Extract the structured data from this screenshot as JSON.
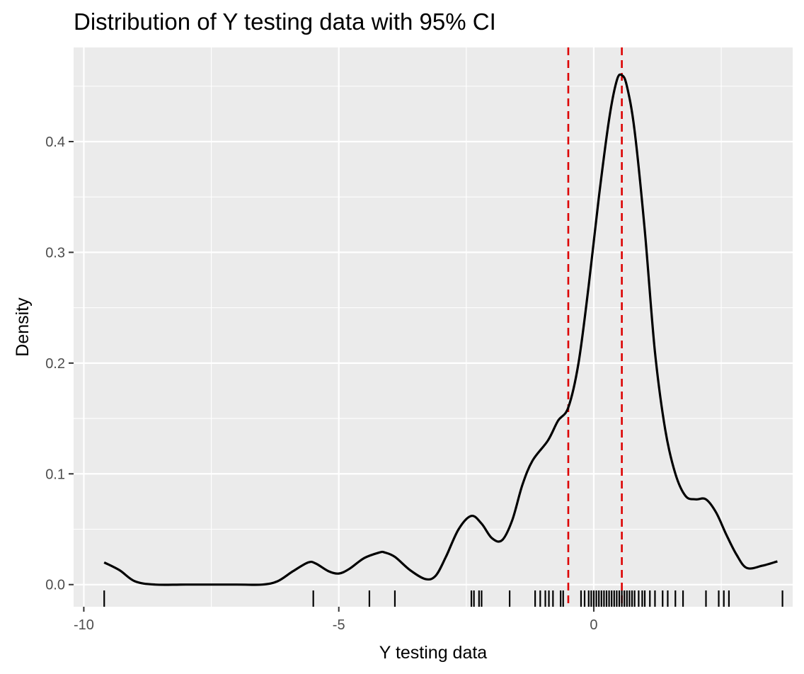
{
  "chart_data": {
    "type": "density",
    "title": "Distribution of Y testing data with 95% CI",
    "xlabel": "Y testing data",
    "ylabel": "Density",
    "xlim": [
      -10.2,
      3.9
    ],
    "ylim": [
      -0.02,
      0.485
    ],
    "x_ticks": [
      -10,
      -5,
      0
    ],
    "x_tick_labels": [
      "-10",
      "-5",
      "0"
    ],
    "y_ticks": [
      0.0,
      0.1,
      0.2,
      0.3,
      0.4
    ],
    "y_tick_labels": [
      "0.0",
      "0.1",
      "0.2",
      "0.3",
      "0.4"
    ],
    "grid": true,
    "background": "#ebebeb",
    "line_color": "#000000",
    "ci_line_color": "#dd0000",
    "ci_lines": [
      -0.5,
      0.55
    ],
    "density": {
      "x": [
        -9.6,
        -9.3,
        -9.0,
        -8.6,
        -8.0,
        -7.0,
        -6.5,
        -6.2,
        -5.9,
        -5.6,
        -5.45,
        -5.2,
        -5.0,
        -4.8,
        -4.5,
        -4.2,
        -4.1,
        -3.9,
        -3.6,
        -3.3,
        -3.1,
        -2.9,
        -2.65,
        -2.4,
        -2.2,
        -2.0,
        -1.8,
        -1.6,
        -1.4,
        -1.2,
        -0.9,
        -0.7,
        -0.5,
        -0.3,
        -0.1,
        0.1,
        0.3,
        0.45,
        0.55,
        0.65,
        0.8,
        1.0,
        1.2,
        1.4,
        1.6,
        1.8,
        2.0,
        2.2,
        2.4,
        2.6,
        2.8,
        3.0,
        3.3,
        3.6
      ],
      "y": [
        0.02,
        0.013,
        0.003,
        0.0,
        0.0,
        0.0,
        0.0,
        0.003,
        0.012,
        0.02,
        0.019,
        0.012,
        0.01,
        0.014,
        0.024,
        0.029,
        0.029,
        0.025,
        0.013,
        0.005,
        0.008,
        0.025,
        0.05,
        0.062,
        0.055,
        0.042,
        0.04,
        0.058,
        0.09,
        0.112,
        0.13,
        0.148,
        0.16,
        0.2,
        0.27,
        0.35,
        0.42,
        0.455,
        0.46,
        0.45,
        0.41,
        0.32,
        0.21,
        0.14,
        0.1,
        0.08,
        0.077,
        0.077,
        0.065,
        0.045,
        0.027,
        0.015,
        0.017,
        0.021
      ]
    },
    "rug": [
      -9.6,
      -5.5,
      -4.4,
      -3.9,
      -2.4,
      -2.35,
      -2.25,
      -2.2,
      -1.65,
      -1.15,
      -1.05,
      -0.95,
      -0.88,
      -0.8,
      -0.65,
      -0.6,
      -0.25,
      -0.18,
      -0.1,
      -0.05,
      0.0,
      0.05,
      0.1,
      0.15,
      0.2,
      0.25,
      0.3,
      0.35,
      0.4,
      0.45,
      0.5,
      0.55,
      0.6,
      0.65,
      0.7,
      0.75,
      0.8,
      0.88,
      0.95,
      1.0,
      1.1,
      1.2,
      1.35,
      1.45,
      1.6,
      1.75,
      2.2,
      2.45,
      2.55,
      2.65,
      3.7
    ]
  }
}
